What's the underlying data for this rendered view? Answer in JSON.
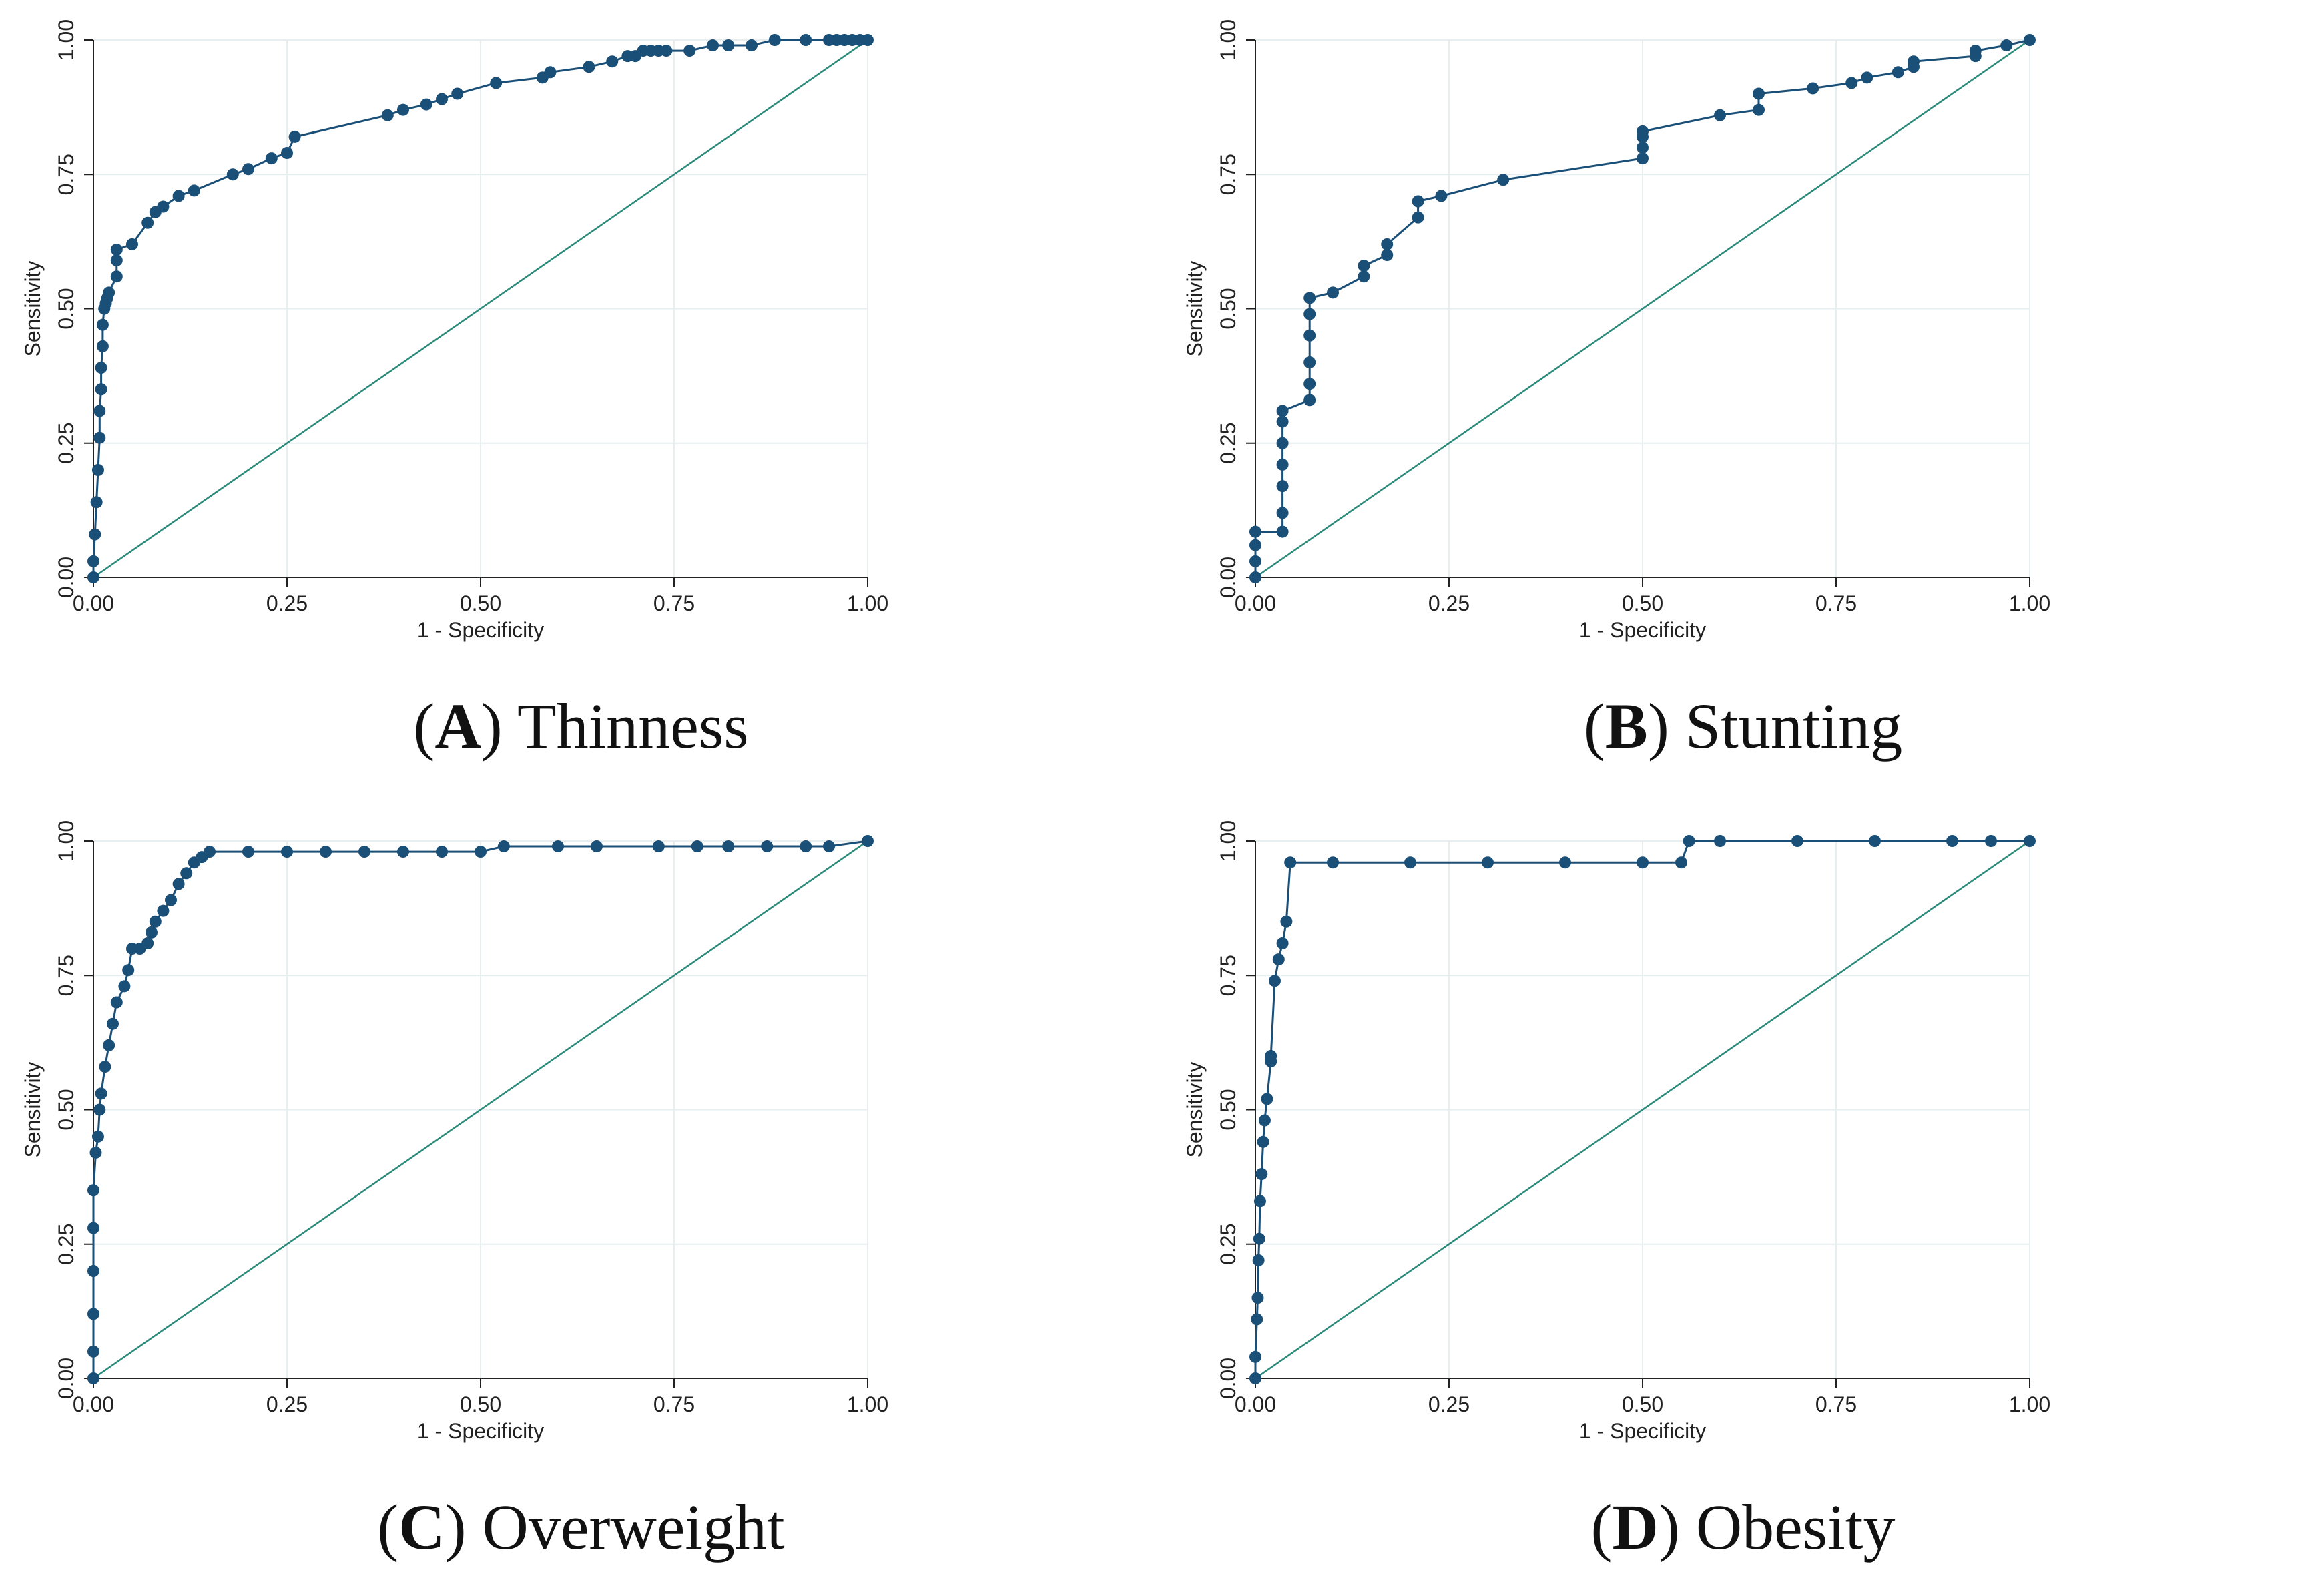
{
  "colors": {
    "roc_curve": "#1a4f78",
    "reference_line": "#2a8a7a",
    "grid": "#e6eef0",
    "axis": "#222222"
  },
  "axis_text": {
    "xlabel": "1 - Specificity",
    "ylabel": "Sensitivity",
    "ticks": [
      "0.00",
      "0.25",
      "0.50",
      "0.75",
      "1.00"
    ]
  },
  "chart_data": [
    {
      "type": "line",
      "caption": {
        "letter": "A",
        "title": "Thinness"
      },
      "xlabel": "1 - Specificity",
      "ylabel": "Sensitivity",
      "xlim": [
        0,
        1
      ],
      "ylim": [
        0,
        1
      ],
      "grid": true,
      "series": [
        {
          "x": [
            0,
            0,
            0.002,
            0.004,
            0.006,
            0.008,
            0.008,
            0.01,
            0.01,
            0.012,
            0.012,
            0.014,
            0.016,
            0.018,
            0.02,
            0.03,
            0.03,
            0.03,
            0.05,
            0.07,
            0.08,
            0.09,
            0.11,
            0.13,
            0.18,
            0.2,
            0.23,
            0.25,
            0.26,
            0.38,
            0.4,
            0.43,
            0.45,
            0.47,
            0.52,
            0.58,
            0.59,
            0.64,
            0.67,
            0.69,
            0.7,
            0.71,
            0.72,
            0.73,
            0.74,
            0.77,
            0.8,
            0.82,
            0.85,
            0.88,
            0.92,
            0.95,
            0.96,
            0.97,
            0.98,
            0.99,
            1
          ],
          "y": [
            0,
            0.03,
            0.08,
            0.14,
            0.2,
            0.26,
            0.31,
            0.35,
            0.39,
            0.43,
            0.47,
            0.5,
            0.51,
            0.52,
            0.53,
            0.56,
            0.59,
            0.61,
            0.62,
            0.66,
            0.68,
            0.69,
            0.71,
            0.72,
            0.75,
            0.76,
            0.78,
            0.79,
            0.82,
            0.86,
            0.87,
            0.88,
            0.89,
            0.9,
            0.92,
            0.93,
            0.94,
            0.95,
            0.96,
            0.97,
            0.97,
            0.98,
            0.98,
            0.98,
            0.98,
            0.98,
            0.99,
            0.99,
            0.99,
            1,
            1,
            1,
            1,
            1,
            1,
            1,
            1
          ]
        }
      ],
      "reference_line": true
    },
    {
      "type": "line",
      "caption": {
        "letter": "B",
        "title": "Stunting"
      },
      "xlabel": "1 - Specificity",
      "ylabel": "Sensitivity",
      "xlim": [
        0,
        1
      ],
      "ylim": [
        0,
        1
      ],
      "grid": true,
      "series": [
        {
          "x": [
            0,
            0,
            0,
            0,
            0.035,
            0.035,
            0.035,
            0.035,
            0.035,
            0.035,
            0.035,
            0.07,
            0.07,
            0.07,
            0.07,
            0.07,
            0.07,
            0.1,
            0.14,
            0.14,
            0.17,
            0.17,
            0.21,
            0.21,
            0.24,
            0.32,
            0.5,
            0.5,
            0.5,
            0.5,
            0.6,
            0.65,
            0.65,
            0.72,
            0.77,
            0.79,
            0.83,
            0.85,
            0.85,
            0.93,
            0.93,
            0.97,
            1
          ],
          "y": [
            0,
            0.03,
            0.06,
            0.085,
            0.085,
            0.12,
            0.17,
            0.21,
            0.25,
            0.29,
            0.31,
            0.33,
            0.36,
            0.4,
            0.45,
            0.49,
            0.52,
            0.53,
            0.56,
            0.58,
            0.6,
            0.62,
            0.67,
            0.7,
            0.71,
            0.74,
            0.78,
            0.8,
            0.82,
            0.83,
            0.86,
            0.87,
            0.9,
            0.91,
            0.92,
            0.93,
            0.94,
            0.95,
            0.96,
            0.97,
            0.98,
            0.99,
            1
          ]
        }
      ],
      "reference_line": true
    },
    {
      "type": "line",
      "caption": {
        "letter": "C",
        "title": "Overweight"
      },
      "xlabel": "1 - Specificity",
      "ylabel": "Sensitivity",
      "xlim": [
        0,
        1
      ],
      "ylim": [
        0,
        1
      ],
      "grid": true,
      "series": [
        {
          "x": [
            0,
            0,
            0,
            0,
            0,
            0,
            0.003,
            0.006,
            0.008,
            0.01,
            0.015,
            0.02,
            0.025,
            0.03,
            0.04,
            0.045,
            0.05,
            0.06,
            0.07,
            0.075,
            0.08,
            0.09,
            0.1,
            0.11,
            0.12,
            0.13,
            0.14,
            0.15,
            0.2,
            0.25,
            0.3,
            0.35,
            0.4,
            0.45,
            0.5,
            0.53,
            0.6,
            0.65,
            0.73,
            0.78,
            0.82,
            0.87,
            0.92,
            0.95,
            1
          ],
          "y": [
            0,
            0.05,
            0.12,
            0.2,
            0.28,
            0.35,
            0.42,
            0.45,
            0.5,
            0.53,
            0.58,
            0.62,
            0.66,
            0.7,
            0.73,
            0.76,
            0.8,
            0.8,
            0.81,
            0.83,
            0.85,
            0.87,
            0.89,
            0.92,
            0.94,
            0.96,
            0.97,
            0.98,
            0.98,
            0.98,
            0.98,
            0.98,
            0.98,
            0.98,
            0.98,
            0.99,
            0.99,
            0.99,
            0.99,
            0.99,
            0.99,
            0.99,
            0.99,
            0.99,
            1
          ]
        }
      ],
      "reference_line": true
    },
    {
      "type": "line",
      "caption": {
        "letter": "D",
        "title": "Obesity"
      },
      "xlabel": "1 - Specificity",
      "ylabel": "Sensitivity",
      "xlim": [
        0,
        1
      ],
      "ylim": [
        0,
        1
      ],
      "grid": true,
      "series": [
        {
          "x": [
            0,
            0,
            0.002,
            0.003,
            0.004,
            0.005,
            0.006,
            0.008,
            0.01,
            0.012,
            0.015,
            0.02,
            0.02,
            0.025,
            0.03,
            0.035,
            0.04,
            0.045,
            0.1,
            0.2,
            0.3,
            0.4,
            0.5,
            0.55,
            0.56,
            0.6,
            0.7,
            0.8,
            0.9,
            0.95,
            1
          ],
          "y": [
            0,
            0.04,
            0.11,
            0.15,
            0.22,
            0.26,
            0.33,
            0.38,
            0.44,
            0.48,
            0.52,
            0.59,
            0.6,
            0.74,
            0.78,
            0.81,
            0.85,
            0.96,
            0.96,
            0.96,
            0.96,
            0.96,
            0.96,
            0.96,
            1,
            1,
            1,
            1,
            1,
            1,
            1
          ]
        }
      ],
      "reference_line": true
    }
  ]
}
